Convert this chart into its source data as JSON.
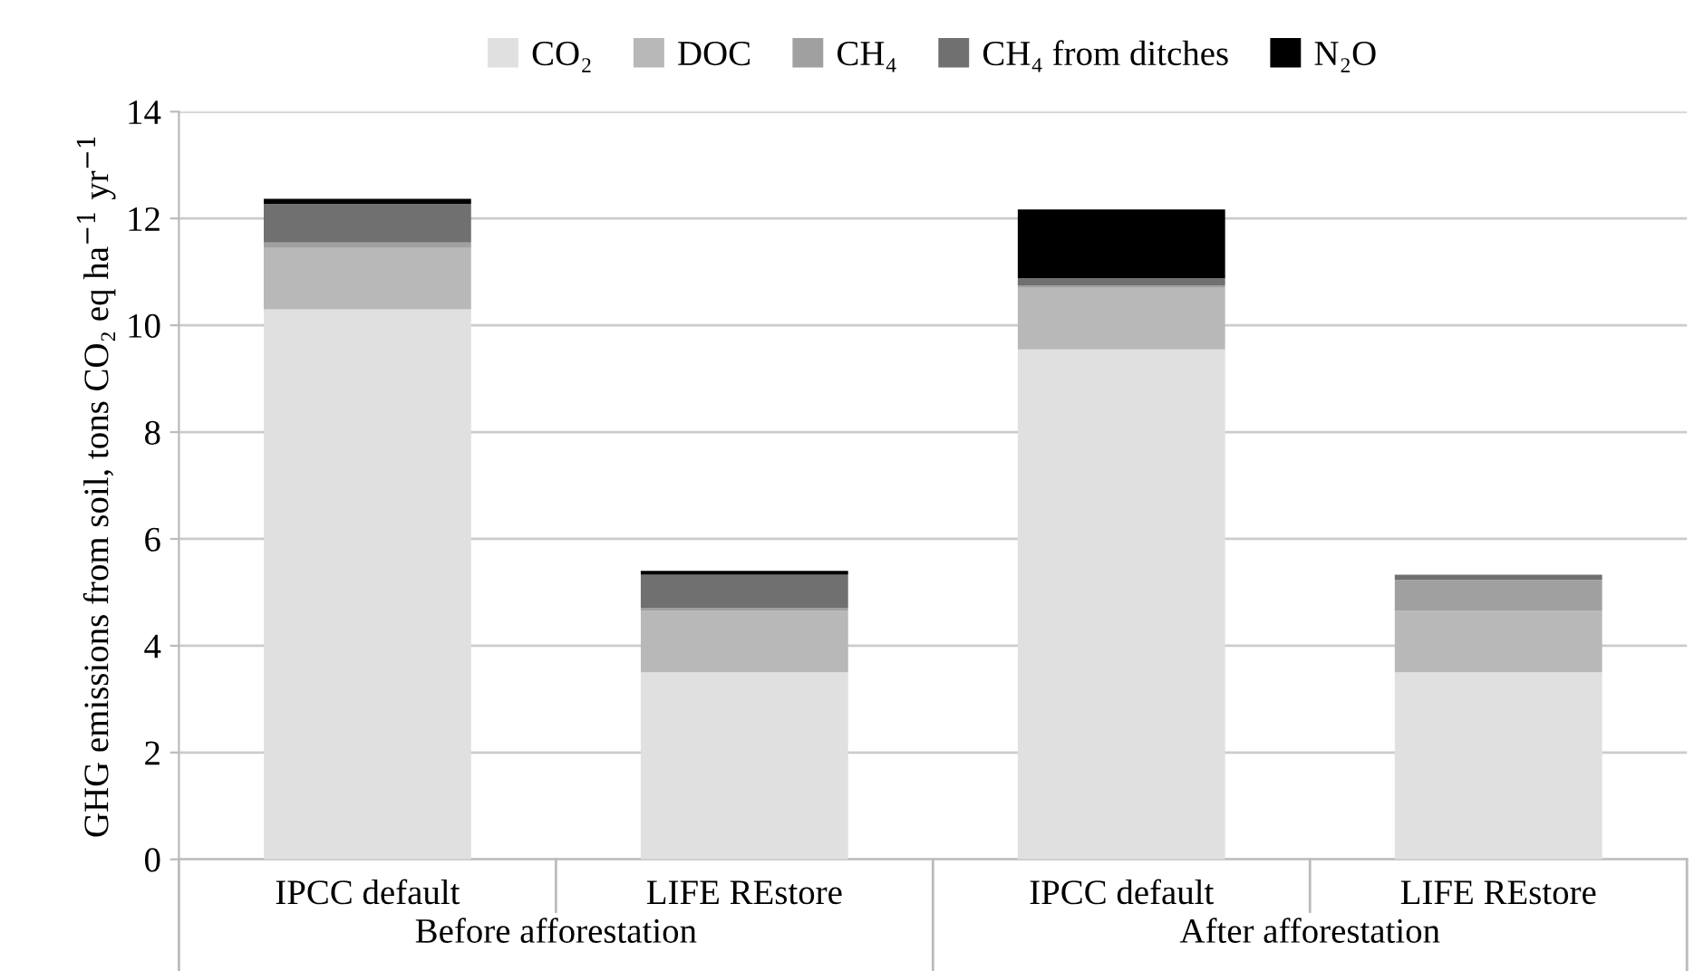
{
  "chart_data": {
    "type": "bar",
    "stacked": true,
    "categories": [
      "IPCC default",
      "LIFE REstore",
      "IPCC default",
      "LIFE REstore"
    ],
    "series": [
      {
        "name": "CO₂",
        "color": "#e0e0e0",
        "values": [
          10.3,
          3.5,
          9.55,
          3.5
        ]
      },
      {
        "name": "DOC",
        "color": "#b8b8b8",
        "values": [
          1.15,
          1.15,
          1.15,
          1.15
        ]
      },
      {
        "name": "CH₄",
        "color": "#a0a0a0",
        "values": [
          0.1,
          0.05,
          0.05,
          0.58
        ]
      },
      {
        "name": "CH₄ from ditches",
        "color": "#707070",
        "values": [
          0.72,
          0.63,
          0.13,
          0.1
        ]
      },
      {
        "name": "N₂O",
        "color": "#000000",
        "values": [
          0.1,
          0.07,
          1.29,
          0
        ]
      }
    ],
    "ylabel": "GHG emissions from soil, tons CO₂ eq ha$^{−1}$ yr$^{−1}$",
    "annotations": [
      "Before afforestation",
      "After afforestation"
    ],
    "ylim": [
      0,
      14
    ],
    "yticks": [
      0,
      2,
      4,
      6,
      8,
      10,
      12,
      14
    ],
    "grid": "y",
    "legend": "top"
  }
}
